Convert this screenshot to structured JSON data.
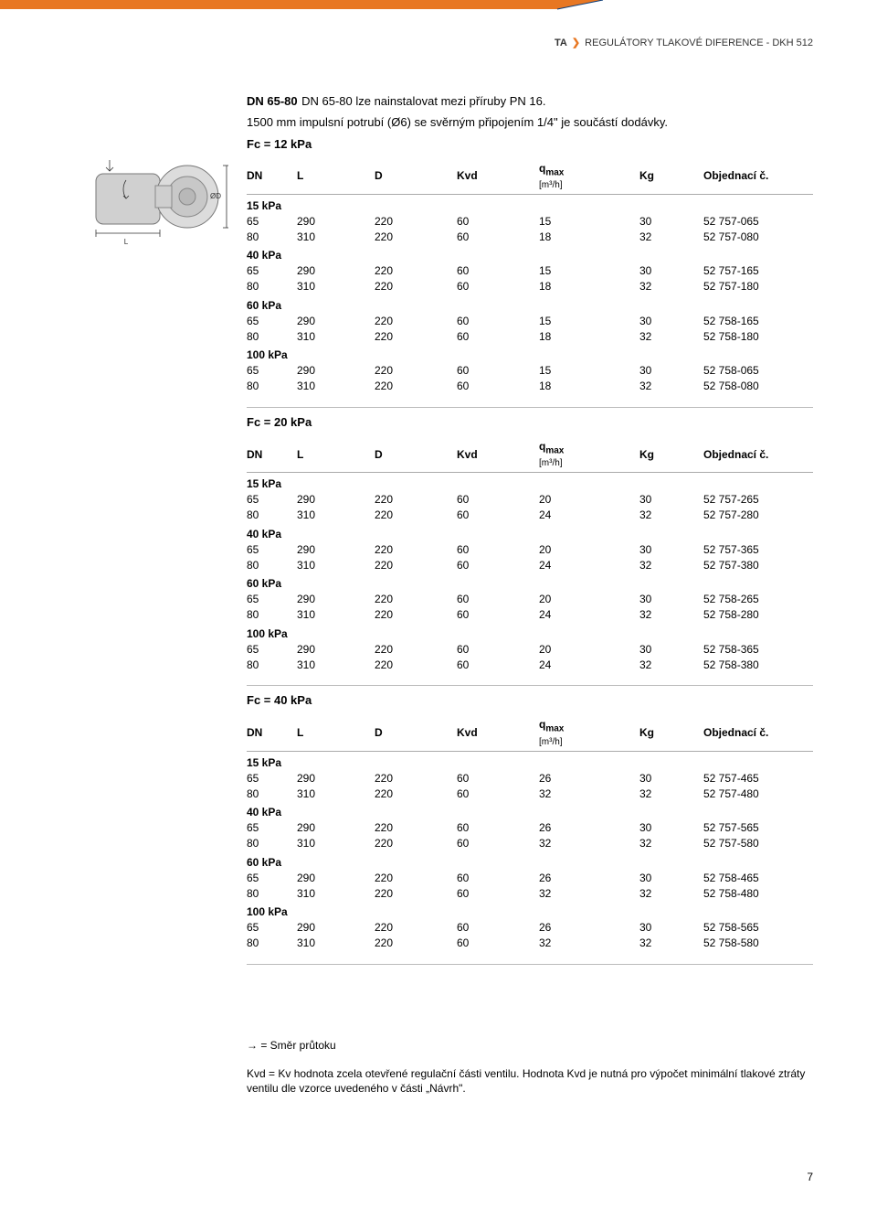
{
  "header": {
    "brand": "TA",
    "title": "REGULÁTORY TLAKOVÉ DIFERENCE - DKH 512"
  },
  "diag_color": "#e87722",
  "intro": {
    "title": "DN 65-80",
    "text1": "DN 65-80 lze nainstalovat mezi příruby PN 16.",
    "text2": "1500 mm impulsní potrubí (Ø6) se svěrným připojením 1/4\" je součástí dodávky."
  },
  "columns": {
    "dn": "DN",
    "l": "L",
    "d": "D",
    "kvd": "Kvd",
    "q": "q",
    "q_sub": "max",
    "q_unit": "[m³/h]",
    "kg": "Kg",
    "obj": "Objednací č."
  },
  "sections": [
    {
      "fc": "Fc = 12 kPa",
      "groups": [
        {
          "label": "15 kPa",
          "rows": [
            {
              "dn": "65",
              "l": "290",
              "d": "220",
              "kvd": "60",
              "q": "15",
              "kg": "30",
              "obj": "52 757-065"
            },
            {
              "dn": "80",
              "l": "310",
              "d": "220",
              "kvd": "60",
              "q": "18",
              "kg": "32",
              "obj": "52 757-080"
            }
          ]
        },
        {
          "label": "40 kPa",
          "rows": [
            {
              "dn": "65",
              "l": "290",
              "d": "220",
              "kvd": "60",
              "q": "15",
              "kg": "30",
              "obj": "52 757-165"
            },
            {
              "dn": "80",
              "l": "310",
              "d": "220",
              "kvd": "60",
              "q": "18",
              "kg": "32",
              "obj": "52 757-180"
            }
          ]
        },
        {
          "label": "60 kPa",
          "rows": [
            {
              "dn": "65",
              "l": "290",
              "d": "220",
              "kvd": "60",
              "q": "15",
              "kg": "30",
              "obj": "52 758-165"
            },
            {
              "dn": "80",
              "l": "310",
              "d": "220",
              "kvd": "60",
              "q": "18",
              "kg": "32",
              "obj": "52 758-180"
            }
          ]
        },
        {
          "label": "100 kPa",
          "rows": [
            {
              "dn": "65",
              "l": "290",
              "d": "220",
              "kvd": "60",
              "q": "15",
              "kg": "30",
              "obj": "52 758-065"
            },
            {
              "dn": "80",
              "l": "310",
              "d": "220",
              "kvd": "60",
              "q": "18",
              "kg": "32",
              "obj": "52 758-080"
            }
          ]
        }
      ]
    },
    {
      "fc": "Fc = 20 kPa",
      "groups": [
        {
          "label": "15 kPa",
          "rows": [
            {
              "dn": "65",
              "l": "290",
              "d": "220",
              "kvd": "60",
              "q": "20",
              "kg": "30",
              "obj": "52 757-265"
            },
            {
              "dn": "80",
              "l": "310",
              "d": "220",
              "kvd": "60",
              "q": "24",
              "kg": "32",
              "obj": "52 757-280"
            }
          ]
        },
        {
          "label": "40 kPa",
          "rows": [
            {
              "dn": "65",
              "l": "290",
              "d": "220",
              "kvd": "60",
              "q": "20",
              "kg": "30",
              "obj": "52 757-365"
            },
            {
              "dn": "80",
              "l": "310",
              "d": "220",
              "kvd": "60",
              "q": "24",
              "kg": "32",
              "obj": "52 757-380"
            }
          ]
        },
        {
          "label": "60 kPa",
          "rows": [
            {
              "dn": "65",
              "l": "290",
              "d": "220",
              "kvd": "60",
              "q": "20",
              "kg": "30",
              "obj": "52 758-265"
            },
            {
              "dn": "80",
              "l": "310",
              "d": "220",
              "kvd": "60",
              "q": "24",
              "kg": "32",
              "obj": "52 758-280"
            }
          ]
        },
        {
          "label": "100 kPa",
          "rows": [
            {
              "dn": "65",
              "l": "290",
              "d": "220",
              "kvd": "60",
              "q": "20",
              "kg": "30",
              "obj": "52 758-365"
            },
            {
              "dn": "80",
              "l": "310",
              "d": "220",
              "kvd": "60",
              "q": "24",
              "kg": "32",
              "obj": "52 758-380"
            }
          ]
        }
      ]
    },
    {
      "fc": "Fc = 40 kPa",
      "groups": [
        {
          "label": "15 kPa",
          "rows": [
            {
              "dn": "65",
              "l": "290",
              "d": "220",
              "kvd": "60",
              "q": "26",
              "kg": "30",
              "obj": "52 757-465"
            },
            {
              "dn": "80",
              "l": "310",
              "d": "220",
              "kvd": "60",
              "q": "32",
              "kg": "32",
              "obj": "52 757-480"
            }
          ]
        },
        {
          "label": "40 kPa",
          "rows": [
            {
              "dn": "65",
              "l": "290",
              "d": "220",
              "kvd": "60",
              "q": "26",
              "kg": "30",
              "obj": "52 757-565"
            },
            {
              "dn": "80",
              "l": "310",
              "d": "220",
              "kvd": "60",
              "q": "32",
              "kg": "32",
              "obj": "52 757-580"
            }
          ]
        },
        {
          "label": "60 kPa",
          "rows": [
            {
              "dn": "65",
              "l": "290",
              "d": "220",
              "kvd": "60",
              "q": "26",
              "kg": "30",
              "obj": "52 758-465"
            },
            {
              "dn": "80",
              "l": "310",
              "d": "220",
              "kvd": "60",
              "q": "32",
              "kg": "32",
              "obj": "52 758-480"
            }
          ]
        },
        {
          "label": "100 kPa",
          "rows": [
            {
              "dn": "65",
              "l": "290",
              "d": "220",
              "kvd": "60",
              "q": "26",
              "kg": "30",
              "obj": "52 758-565"
            },
            {
              "dn": "80",
              "l": "310",
              "d": "220",
              "kvd": "60",
              "q": "32",
              "kg": "32",
              "obj": "52 758-580"
            }
          ]
        }
      ]
    }
  ],
  "notes": {
    "flow": "→ = Směr průtoku",
    "kvd": "Kvd = Kv hodnota zcela otevřené regulační části ventilu. Hodnota Kvd je nutná pro výpočet minimální tlakové ztráty ventilu dle vzorce uvedeného v části „Návrh\"."
  },
  "page_number": "7"
}
